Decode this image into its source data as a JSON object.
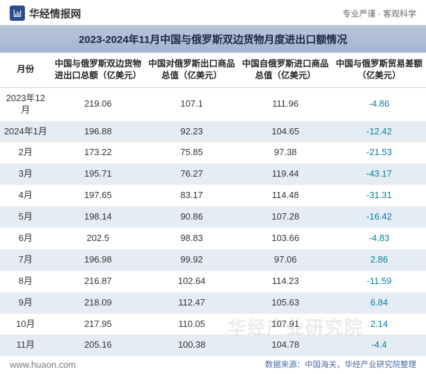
{
  "header": {
    "brand": "华经情报网",
    "tagline": "专业严谨 · 客观科学"
  },
  "title": "2023-2024年11月中国与俄罗斯双边货物月度进出口额情况",
  "table": {
    "columns": [
      "月份",
      "中国与俄罗斯双边货物进出口总额（亿美元）",
      "中国对俄罗斯出口商品总值（亿美元）",
      "中国自俄罗斯进口商品总值（亿美元）",
      "中国与俄罗斯贸易差额（亿美元）"
    ],
    "column_widths": [
      "12%",
      "22%",
      "22%",
      "22%",
      "22%"
    ],
    "header_fontsize": 12.5,
    "cell_fontsize": 13,
    "row_bg_even": "#e6ecf4",
    "row_bg_odd": "#ffffff",
    "text_color": "#333333",
    "diff_color": "#0080a0",
    "rows": [
      {
        "month": "2023年12月",
        "total": "219.06",
        "export": "107.1",
        "import": "111.96",
        "diff": "-4.86"
      },
      {
        "month": "2024年1月",
        "total": "196.88",
        "export": "92.23",
        "import": "104.65",
        "diff": "-12.42"
      },
      {
        "month": "2月",
        "total": "173.22",
        "export": "75.85",
        "import": "97.38",
        "diff": "-21.53"
      },
      {
        "month": "3月",
        "total": "195.71",
        "export": "76.27",
        "import": "119.44",
        "diff": "-43.17"
      },
      {
        "month": "4月",
        "total": "197.65",
        "export": "83.17",
        "import": "114.48",
        "diff": "-31.31"
      },
      {
        "month": "5月",
        "total": "198.14",
        "export": "90.86",
        "import": "107.28",
        "diff": "-16.42"
      },
      {
        "month": "6月",
        "total": "202.5",
        "export": "98.83",
        "import": "103.66",
        "diff": "-4.83"
      },
      {
        "month": "7月",
        "total": "196.98",
        "export": "99.92",
        "import": "97.06",
        "diff": "2.86"
      },
      {
        "month": "8月",
        "total": "216.87",
        "export": "102.64",
        "import": "114.23",
        "diff": "-11.59"
      },
      {
        "month": "9月",
        "total": "218.09",
        "export": "112.47",
        "import": "105.63",
        "diff": "6.84"
      },
      {
        "month": "10月",
        "total": "217.95",
        "export": "110.05",
        "import": "107.91",
        "diff": "2.14"
      },
      {
        "month": "11月",
        "total": "205.16",
        "export": "100.38",
        "import": "104.78",
        "diff": "-4.4"
      }
    ]
  },
  "footer": {
    "website": "www.huaon.com",
    "source": "数据来源：中国海关，华经产业研究院整理"
  },
  "watermark": "华经产业研究院",
  "colors": {
    "title_bg_top": "#b8c5db",
    "title_bg_bottom": "#a5b5d0",
    "title_text": "#1a2845",
    "brand_color": "#2a4a8a",
    "source_color": "#4a6aa8",
    "website_color": "#7a7a7a"
  }
}
